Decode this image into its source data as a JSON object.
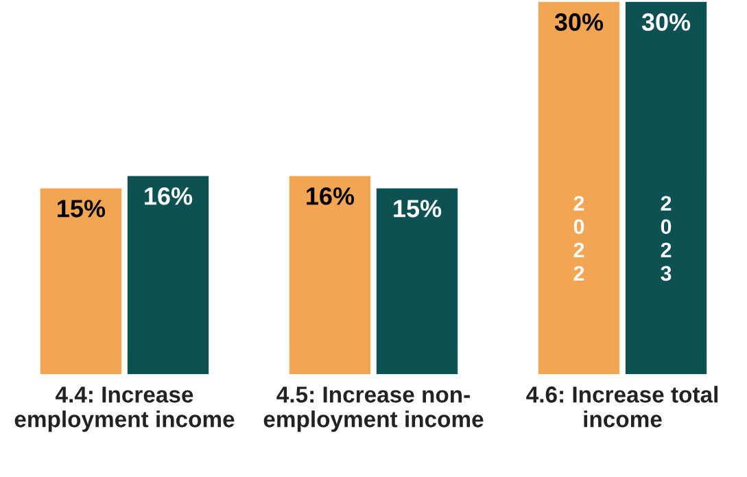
{
  "chart_data": {
    "type": "bar",
    "categories": [
      "4.4: Increase employment income",
      "4.5: Increase non-employment income",
      "4.6: Increase total income"
    ],
    "series": [
      {
        "name": "2022",
        "color": "#f2a654",
        "values": [
          15,
          16,
          30
        ],
        "value_labels": [
          "15%",
          "16%",
          "30%"
        ]
      },
      {
        "name": "2023",
        "color": "#0e5153",
        "values": [
          16,
          15,
          30
        ],
        "value_labels": [
          "16%",
          "15%",
          "30%"
        ]
      }
    ],
    "legend": false,
    "grid": false,
    "tick_labels": "x"
  }
}
